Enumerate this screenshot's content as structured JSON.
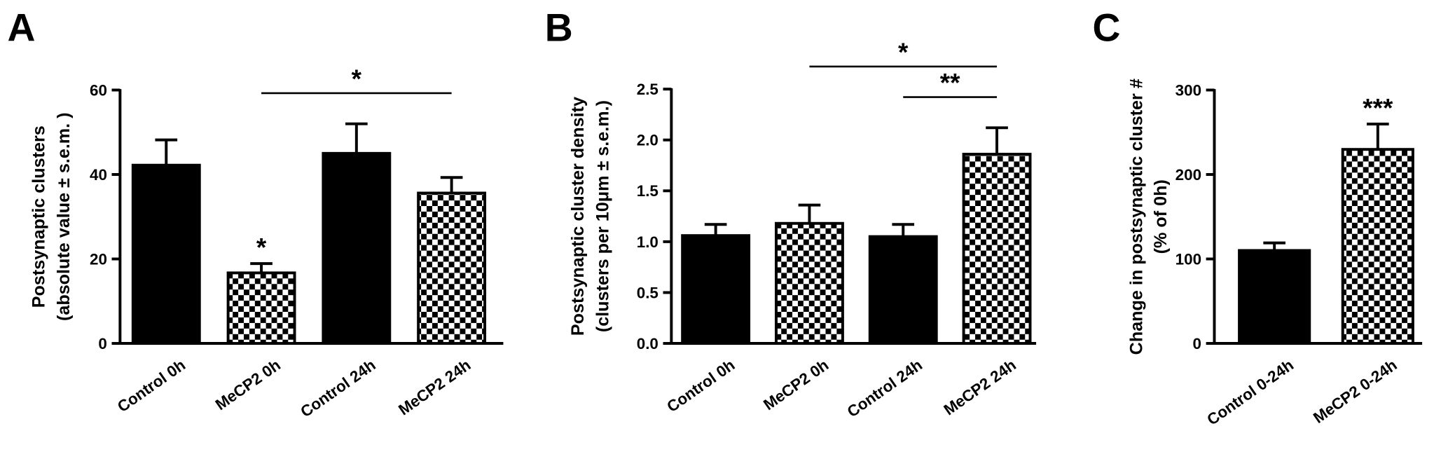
{
  "chart_data": [
    {
      "type": "bar",
      "panel": "A",
      "ylabel": [
        "Postsynaptic clusters",
        "(absolute value ± s.e.m. )"
      ],
      "categories": [
        "Control 0h",
        "MeCP2 0h",
        "Control 24h",
        "MeCP2 24h"
      ],
      "values": [
        42.2,
        16.7,
        45,
        35.6
      ],
      "errors": [
        6,
        2.2,
        7,
        3.7
      ],
      "bar_styles": [
        "solid",
        "checkered",
        "solid",
        "checkered"
      ],
      "color": "#000000",
      "ylim": [
        0,
        60
      ],
      "yticks": [
        0,
        20,
        40,
        60
      ],
      "annotations": [
        {
          "text": "*",
          "at": "MeCP2 0h"
        },
        {
          "text": "*",
          "from": "MeCP2 0h",
          "to": "MeCP2 24h"
        }
      ]
    },
    {
      "type": "bar",
      "panel": "B",
      "ylabel": [
        "Postsynaptic cluster density",
        "(clusters per 10μm ± s.e.m.)"
      ],
      "categories": [
        "Control 0h",
        "MeCP2 0h",
        "Control 24h",
        "MeCP2 24h"
      ],
      "values": [
        1.06,
        1.18,
        1.05,
        1.86
      ],
      "errors": [
        0.11,
        0.18,
        0.12,
        0.26
      ],
      "bar_styles": [
        "solid",
        "checkered",
        "solid",
        "checkered"
      ],
      "color": "#000000",
      "ylim": [
        0,
        2.5
      ],
      "yticks": [
        {
          "value": 0,
          "label": "0.0"
        },
        0.5,
        {
          "value": 1,
          "label": "1.0"
        },
        1.5,
        {
          "value": 2,
          "label": "2.0"
        },
        2.5
      ],
      "annotations": [
        {
          "text": "**",
          "from": "Control 24h",
          "to": "MeCP2 24h"
        },
        {
          "text": "*",
          "from": "MeCP2 0h",
          "to": "MeCP2 24h"
        }
      ]
    },
    {
      "type": "bar",
      "panel": "C",
      "ylabel": [
        "Change in postsynaptic cluster #",
        "(% of 0h)"
      ],
      "categories": [
        "Control 0-24h",
        "MeCP2 0-24h"
      ],
      "values": [
        110,
        229.7
      ],
      "errors": [
        9,
        30
      ],
      "bar_styles": [
        "solid",
        "checkered"
      ],
      "color": "#000000",
      "ylim": [
        0,
        300
      ],
      "yticks": [
        0,
        100,
        200,
        300
      ],
      "annotations": [
        {
          "text": "***",
          "at": "MeCP2 0-24h"
        }
      ]
    }
  ]
}
